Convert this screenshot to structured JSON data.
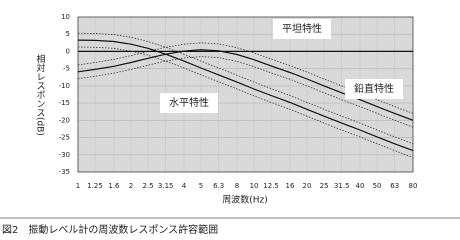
{
  "chart_data": {
    "type": "line",
    "caption": "図2　振動レベル計の周波数レスポンス許容範囲",
    "x_label": "周波数(Hz)",
    "y_label": "相対レスポンス(dB)",
    "annotations": [
      "平坦特性",
      "鉛直特性",
      "水平特性"
    ],
    "x": [
      1,
      1.25,
      1.6,
      2,
      2.5,
      3.15,
      4,
      5,
      6.3,
      8,
      10,
      12.5,
      16,
      20,
      25,
      31.5,
      40,
      50,
      63,
      80
    ],
    "xlim": [
      1,
      80
    ],
    "xticks": [
      1,
      1.25,
      1.6,
      2,
      2.5,
      3.15,
      4,
      5,
      6.3,
      8,
      10,
      12.5,
      16,
      20,
      25,
      31.5,
      40,
      50,
      63,
      80
    ],
    "x_log": true,
    "ylim": [
      -35,
      10
    ],
    "yticks": [
      10,
      5,
      0,
      -5,
      -10,
      -15,
      -20,
      -25,
      -30,
      -35
    ],
    "grid": true,
    "series": [
      {
        "color": "#111111",
        "style": "solid",
        "values": [
          0,
          0,
          0,
          0,
          0,
          0,
          0,
          0,
          0,
          0,
          0,
          0,
          0,
          0,
          0,
          0,
          0,
          0,
          0,
          0
        ]
      },
      {
        "color": "#111111",
        "style": "solid",
        "values": [
          -5.9,
          -5.2,
          -4.3,
          -3.2,
          -2,
          -0.8,
          0.1,
          0.5,
          0.2,
          -0.9,
          -2.4,
          -4.2,
          -6.1,
          -8,
          -10,
          -12,
          -14,
          -16,
          -18,
          -20
        ]
      },
      {
        "color": "#111111",
        "style": "solid",
        "values": [
          3.3,
          3.2,
          2.9,
          2.1,
          0.9,
          -0.8,
          -2.8,
          -4.8,
          -6.8,
          -8.9,
          -10.9,
          -12.8,
          -14.8,
          -16.8,
          -18.8,
          -20.8,
          -22.8,
          -24.8,
          -26.8,
          -28.8
        ]
      },
      {
        "color": "#333333",
        "style": "dotted",
        "values": [
          -3.9,
          -3.2,
          -2.3,
          -1.2,
          0,
          1.2,
          2.1,
          2.5,
          2.2,
          1.1,
          -0.4,
          -2.2,
          -4.1,
          -6,
          -8,
          -10,
          -12,
          -14,
          -16,
          -18
        ]
      },
      {
        "color": "#333333",
        "style": "dotted",
        "values": [
          -7.9,
          -7.2,
          -6.3,
          -5.2,
          -4,
          -2.8,
          -1.9,
          -1.5,
          -1.8,
          -2.9,
          -4.4,
          -6.2,
          -8.1,
          -10,
          -12,
          -14,
          -16,
          -18,
          -20,
          -22
        ]
      },
      {
        "color": "#333333",
        "style": "dotted",
        "values": [
          5.3,
          5.2,
          4.9,
          4.1,
          2.9,
          1.2,
          -0.8,
          -2.8,
          -4.8,
          -6.9,
          -8.9,
          -10.8,
          -12.8,
          -14.8,
          -16.8,
          -18.8,
          -20.8,
          -22.8,
          -24.8,
          -26.8
        ]
      },
      {
        "color": "#333333",
        "style": "dotted",
        "values": [
          1.3,
          1.2,
          0.9,
          0.1,
          -1.1,
          -2.8,
          -4.8,
          -6.8,
          -8.8,
          -10.9,
          -12.9,
          -14.8,
          -16.8,
          -18.8,
          -20.8,
          -22.8,
          -24.8,
          -26.8,
          -28.8,
          -30.8
        ]
      }
    ]
  }
}
